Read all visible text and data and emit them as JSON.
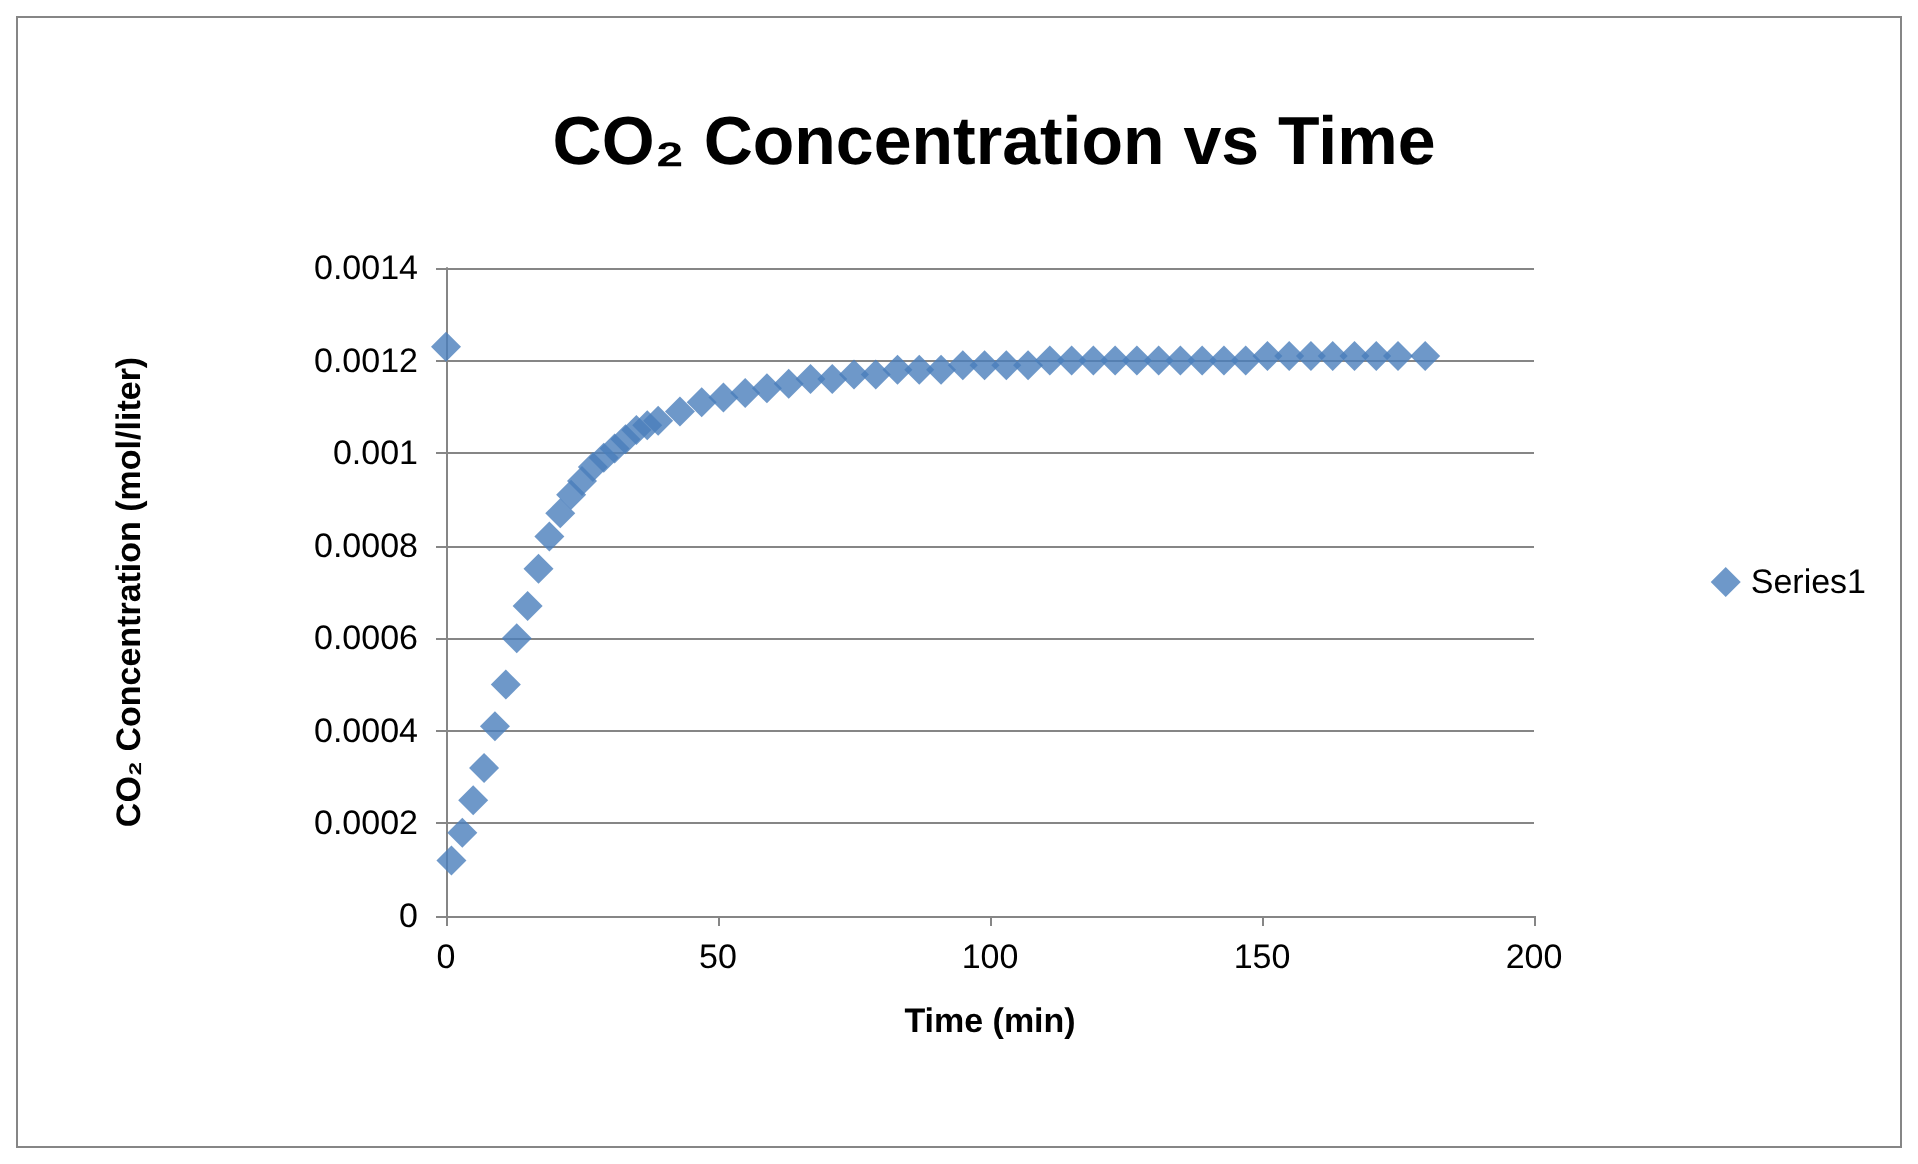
{
  "chart_data": {
    "type": "scatter",
    "title": "CO₂ Concentration vs Time",
    "xlabel": "Time (min)",
    "ylabel": "CO₂ Concentration (mol/liter)",
    "xlim": [
      0,
      200
    ],
    "xticks": [
      0,
      50,
      100,
      150,
      200
    ],
    "ylim": [
      0,
      0.0014
    ],
    "yticks": [
      0,
      0.0002,
      0.0004,
      0.0006,
      0.0008,
      0.001,
      0.0012,
      0.0014
    ],
    "grid": "y",
    "legend": "right",
    "marker": "diamond",
    "series": [
      {
        "name": "Series1",
        "color": "#4a7ebb",
        "x": [
          0,
          1,
          3,
          5,
          7,
          9,
          11,
          13,
          15,
          17,
          19,
          21,
          23,
          25,
          27,
          29,
          31,
          33,
          35,
          37,
          39,
          43,
          47,
          51,
          55,
          59,
          63,
          67,
          71,
          75,
          79,
          83,
          87,
          91,
          95,
          99,
          103,
          107,
          111,
          115,
          119,
          123,
          127,
          131,
          135,
          139,
          143,
          147,
          151,
          155,
          159,
          163,
          167,
          171,
          175,
          180
        ],
        "values": [
          0.00123,
          0.00012,
          0.00018,
          0.00025,
          0.00032,
          0.00041,
          0.0005,
          0.0006,
          0.00067,
          0.00075,
          0.00082,
          0.00087,
          0.00091,
          0.00094,
          0.00097,
          0.00099,
          0.00101,
          0.00103,
          0.00105,
          0.00106,
          0.00107,
          0.00109,
          0.00111,
          0.00112,
          0.00113,
          0.00114,
          0.00115,
          0.00116,
          0.00116,
          0.00117,
          0.00117,
          0.00118,
          0.00118,
          0.00118,
          0.00119,
          0.00119,
          0.00119,
          0.00119,
          0.0012,
          0.0012,
          0.0012,
          0.0012,
          0.0012,
          0.0012,
          0.0012,
          0.0012,
          0.0012,
          0.0012,
          0.00121,
          0.00121,
          0.00121,
          0.00121,
          0.00121,
          0.00121,
          0.00121,
          0.00121
        ]
      }
    ]
  }
}
